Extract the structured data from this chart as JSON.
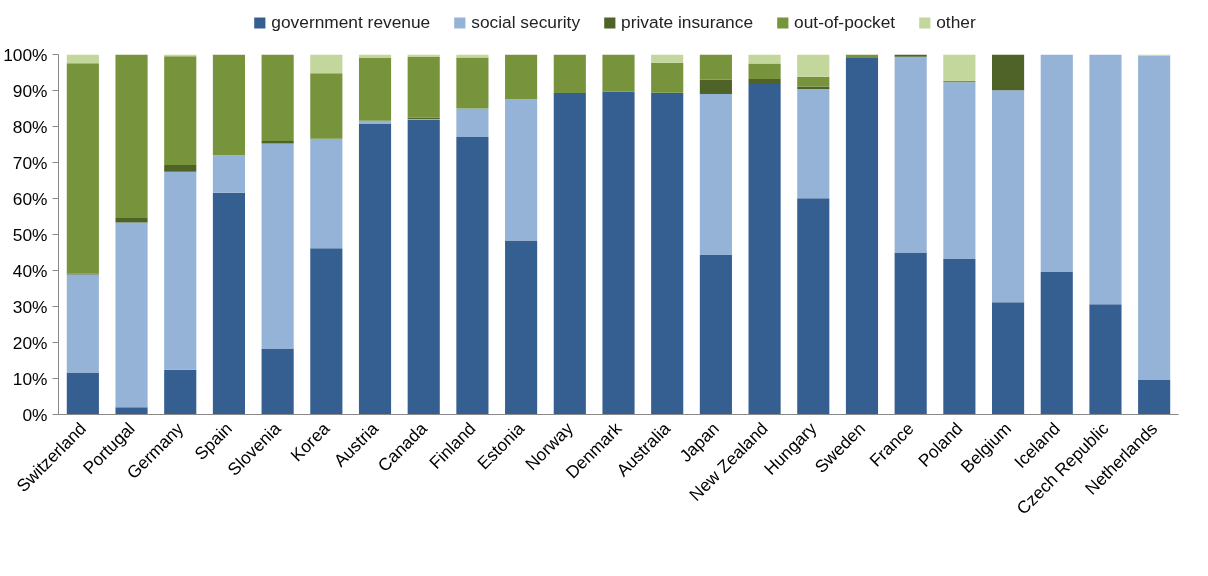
{
  "chart_data": {
    "type": "bar",
    "stacked": true,
    "legend": "top",
    "grid": false,
    "categories": [
      "Switzerland",
      "Portugal",
      "Germany",
      "Spain",
      "Slovenia",
      "Korea",
      "Austria",
      "Canada",
      "Finland",
      "Estonia",
      "Norway",
      "Denmark",
      "Australia",
      "Japan",
      "New Zealand",
      "Hungary",
      "Sweden",
      "France",
      "Poland",
      "Belgium",
      "Iceland",
      "Czech Republic",
      "Netherlands"
    ],
    "ylim": [
      0,
      100
    ],
    "yticks": [
      {
        "value": 0,
        "label": "0%"
      },
      {
        "value": 10,
        "label": "10%"
      },
      {
        "value": 20,
        "label": "20%"
      },
      {
        "value": 30,
        "label": "30%"
      },
      {
        "value": 40,
        "label": "40%"
      },
      {
        "value": 50,
        "label": "50%"
      },
      {
        "value": 60,
        "label": "60%"
      },
      {
        "value": 70,
        "label": "70%"
      },
      {
        "value": 80,
        "label": "80%"
      },
      {
        "value": 90,
        "label": "90%"
      },
      {
        "value": 100,
        "label": "100%"
      }
    ],
    "series": [
      {
        "name": "government revenue",
        "color": "#365f91",
        "values": [
          11.7,
          2.0,
          12.4,
          61.6,
          18.3,
          46.2,
          80.8,
          81.8,
          77.1,
          48.3,
          89.3,
          89.7,
          89.0,
          44.3,
          92.1,
          60.1,
          99.0,
          45.0,
          43.2,
          31.2,
          39.6,
          30.6,
          9.6
        ]
      },
      {
        "name": "social security",
        "color": "#95b3d7",
        "values": [
          27.2,
          51.3,
          55.0,
          10.4,
          57.0,
          30.4,
          0.8,
          0.3,
          7.9,
          39.3,
          0,
          0,
          0,
          44.7,
          0,
          30.3,
          0,
          54.4,
          49.1,
          58.9,
          60.4,
          69.4,
          90.1
        ]
      },
      {
        "name": "private insurance",
        "color": "#4f6228",
        "values": [
          0.3,
          1.3,
          1.9,
          0,
          0.7,
          0,
          0,
          0.4,
          0,
          0,
          0,
          0,
          0.4,
          4.0,
          1.1,
          0.7,
          0,
          0.6,
          0,
          9.9,
          0,
          0,
          0
        ]
      },
      {
        "name": "out-of-pocket",
        "color": "#77933c",
        "values": [
          58.4,
          45.4,
          30.2,
          28.0,
          24.0,
          18.2,
          17.4,
          16.8,
          14.2,
          12.4,
          10.7,
          10.3,
          8.3,
          7.0,
          4.3,
          2.7,
          1.0,
          null,
          0.4,
          0,
          0,
          0,
          0
        ]
      },
      {
        "name": "other",
        "color": "#c3d69b",
        "values": [
          2.4,
          0,
          0.5,
          0,
          0,
          5.2,
          1.0,
          0.7,
          0.8,
          0,
          0,
          0,
          2.3,
          0,
          2.5,
          6.2,
          0,
          0,
          7.3,
          0,
          0,
          0,
          0.3
        ]
      }
    ]
  }
}
